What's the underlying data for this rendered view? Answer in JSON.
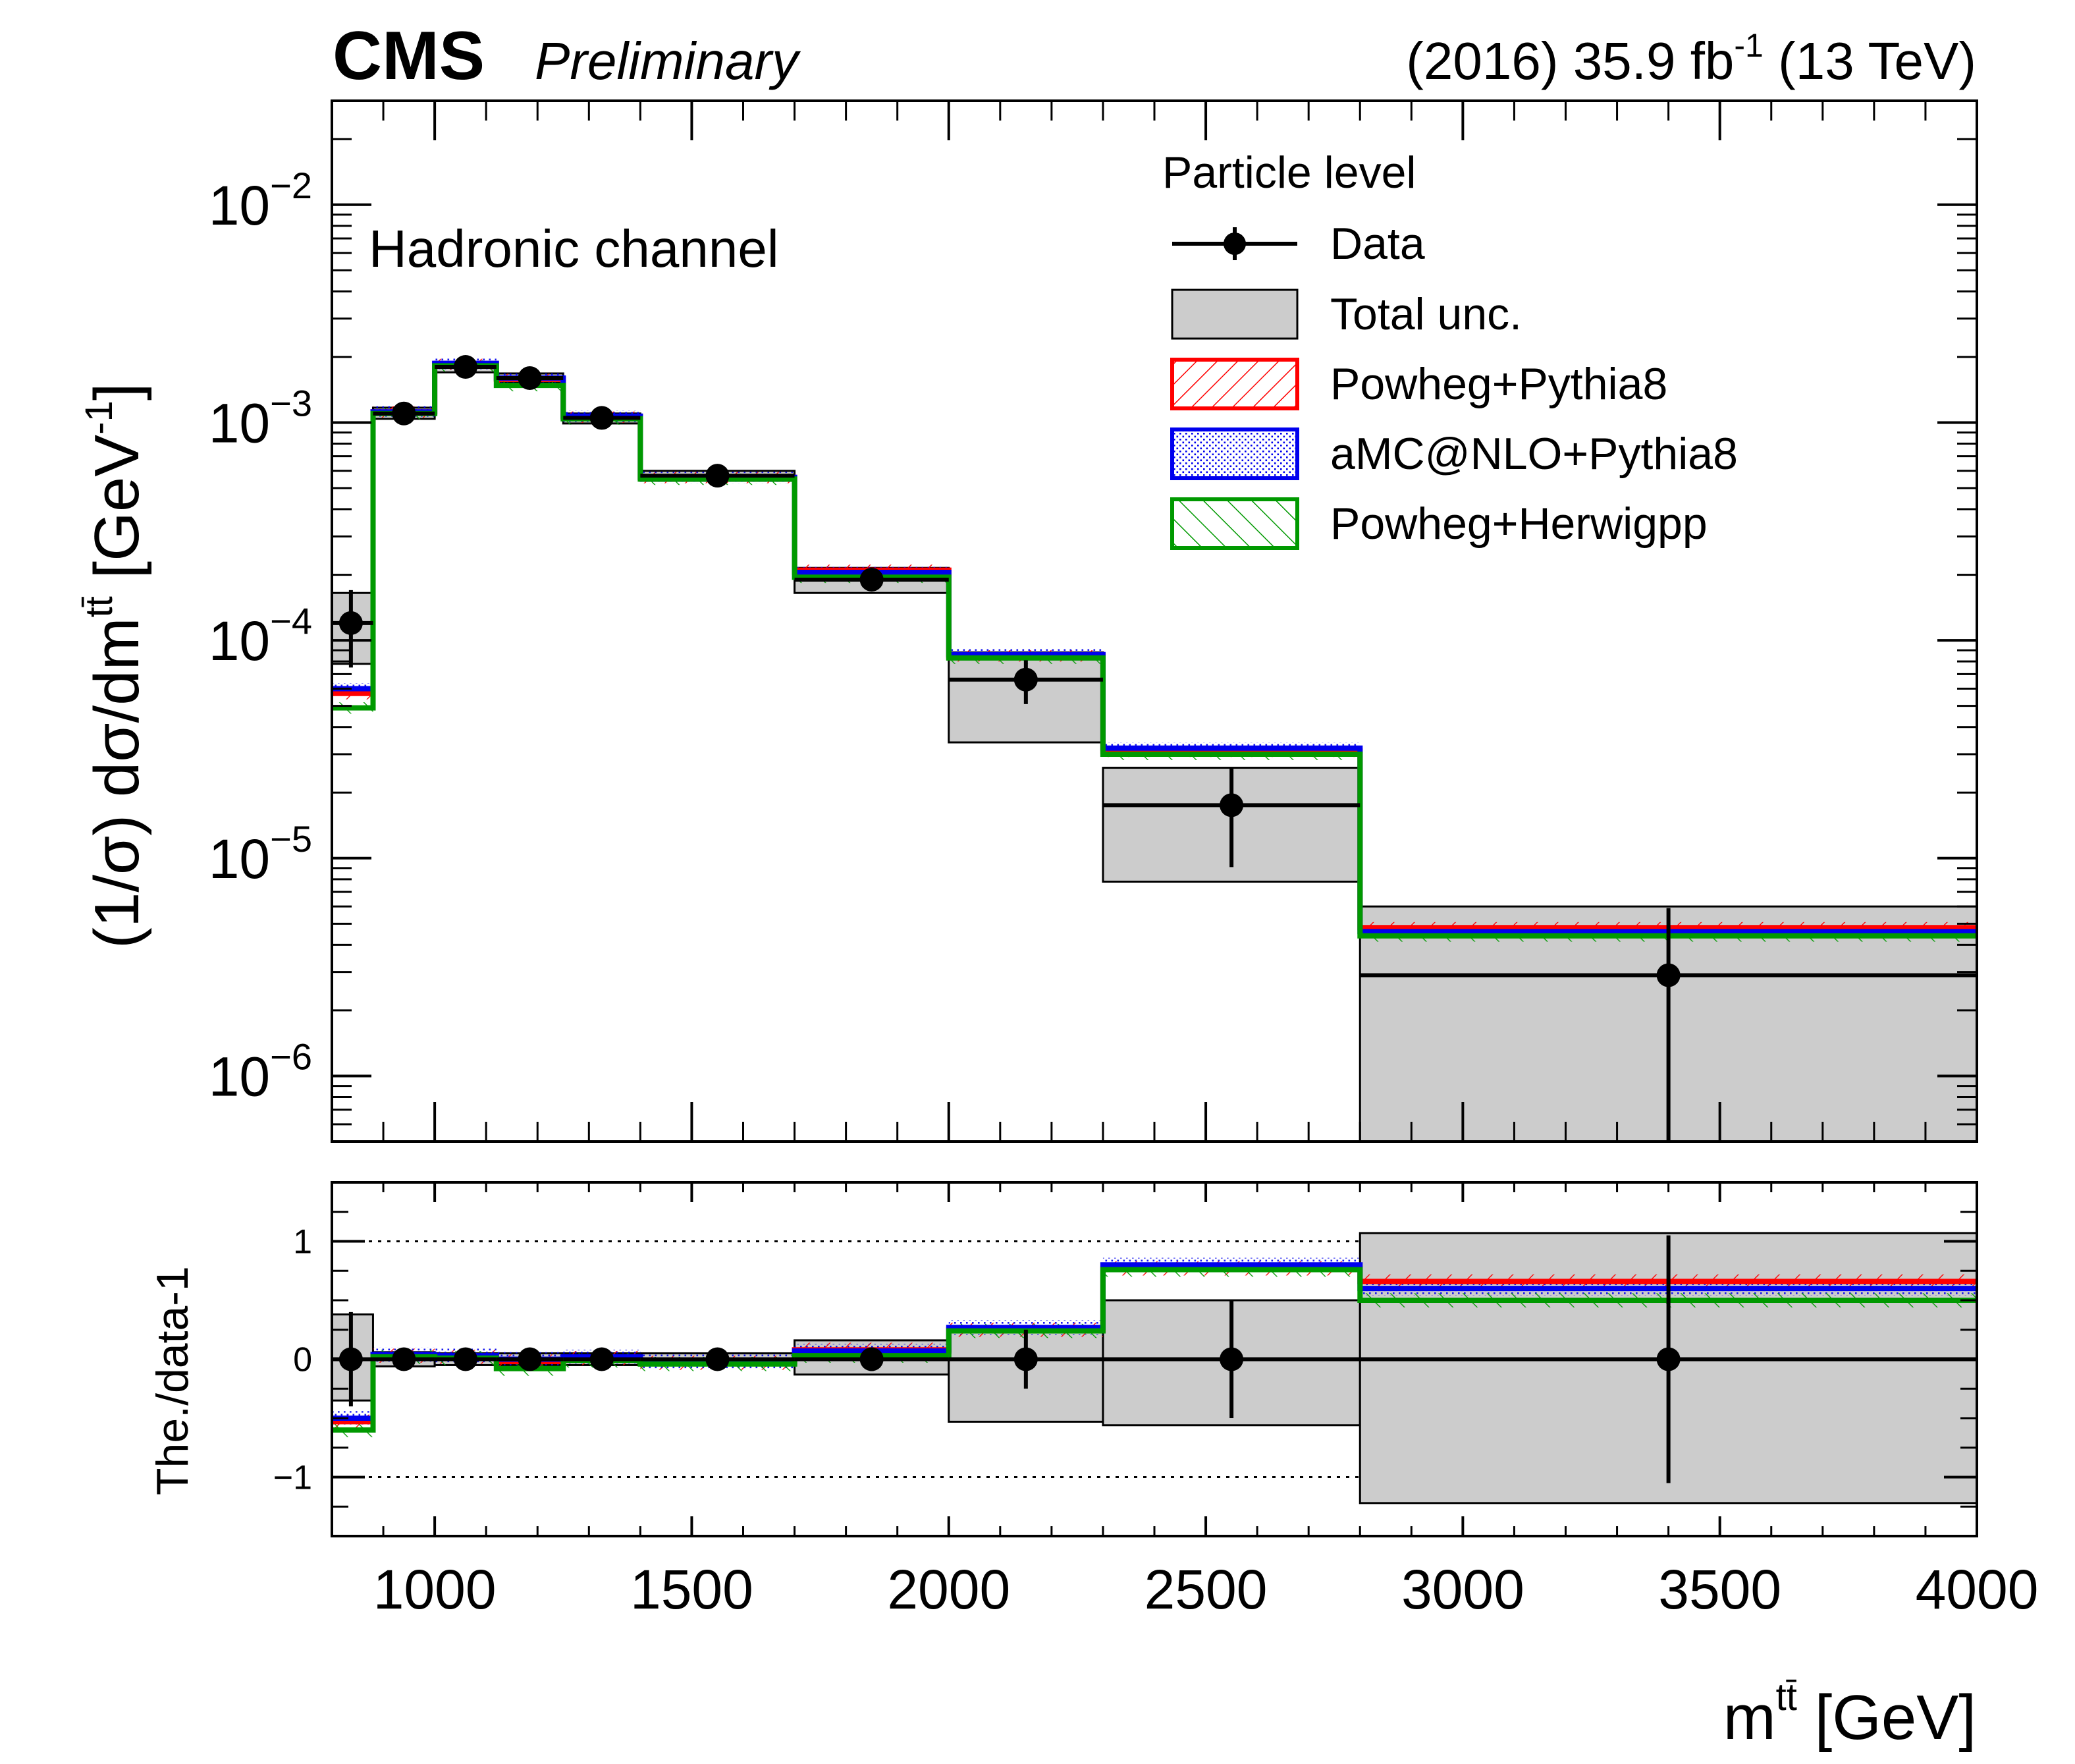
{
  "header": {
    "experiment": "CMS",
    "status": "Preliminary",
    "lumi_main": "(2016) 35.9 fb",
    "lumi_exp": "-1",
    "lumi_energy": " (13 TeV)"
  },
  "colors": {
    "data": "#000000",
    "total_unc": "#cccccc",
    "powheg_pythia8": "#ff0000",
    "amcatnlo_pythia8": "#0000ee",
    "powheg_herwigpp": "#009900"
  },
  "chart_data": {
    "type": "line",
    "channel_label": "Hadronic channel",
    "legend_title": "Particle level",
    "legend": [
      "Data",
      "Total unc.",
      "Powheg+Pythia8",
      "aMC@NLO+Pythia8",
      "Powheg+Herwigpp"
    ],
    "legend_placement": "top-right",
    "xlim": [
      800,
      4000
    ],
    "bin_edges": [
      800,
      880,
      1000,
      1120,
      1250,
      1400,
      1700,
      2000,
      2300,
      2800,
      4000
    ],
    "x_ticks": [
      "1000",
      "1500",
      "2000",
      "2500",
      "3000",
      "3500",
      "4000"
    ],
    "top_panel": {
      "ylabel_parts": [
        "(1/σ) dσ/dm",
        "tt̄",
        " [GeV",
        "-1",
        "]"
      ],
      "yscale": "log",
      "ylim": [
        5e-07,
        0.03
      ],
      "y_ticks": [
        {
          "base": "10",
          "exp": "−2"
        },
        {
          "base": "10",
          "exp": "−3"
        },
        {
          "base": "10",
          "exp": "−4"
        },
        {
          "base": "10",
          "exp": "−5"
        },
        {
          "base": "10",
          "exp": "−6"
        }
      ],
      "data": {
        "x": [
          837,
          940,
          1060,
          1185,
          1325,
          1550,
          1850,
          2150,
          2550,
          3400
        ],
        "y": [
          0.00012,
          0.0011,
          0.0018,
          0.0016,
          0.00105,
          0.00057,
          0.00019,
          6.6e-05,
          1.75e-05,
          2.9e-06
        ],
        "y_err_low": [
          4.5e-05,
          7e-05,
          8e-05,
          8e-05,
          6e-05,
          2.5e-05,
          2e-05,
          1.5e-05,
          8.4e-06,
          2.4e-06
        ],
        "y_err_high": [
          5e-05,
          7e-05,
          8e-05,
          8e-05,
          6e-05,
          2.5e-05,
          2e-05,
          1.5e-05,
          8.5e-06,
          3e-06
        ]
      },
      "total_unc": {
        "low": [
          7.8e-05,
          0.00104,
          0.0017,
          0.00152,
          0.00099,
          0.00054,
          0.000165,
          3.4e-05,
          7.8e-06,
          3e-07
        ],
        "high": [
          0.000165,
          0.00117,
          0.0019,
          0.00168,
          0.0011,
          0.0006,
          0.000215,
          8.8e-05,
          2.6e-05,
          6e-06
        ]
      },
      "series": [
        {
          "name": "Powheg+Pythia8",
          "values": [
            5.7e-05,
            0.00112,
            0.00185,
            0.00158,
            0.00106,
            0.00056,
            0.00021,
            8.5e-05,
            3.1e-05,
            4.8e-06
          ]
        },
        {
          "name": "aMC@NLO+Pythia8",
          "values": [
            6e-05,
            0.00112,
            0.00187,
            0.0016,
            0.00107,
            0.00056,
            0.000205,
            8.6e-05,
            3.2e-05,
            4.6e-06
          ]
        },
        {
          "name": "Powheg+Herwigpp",
          "values": [
            4.9e-05,
            0.0011,
            0.00182,
            0.00148,
            0.00104,
            0.00055,
            0.000195,
            8.3e-05,
            3e-05,
            4.4e-06
          ]
        }
      ]
    },
    "ratio_panel": {
      "ylabel": "The./data-1",
      "ylim": [
        -1.5,
        1.5
      ],
      "y_ticks": [
        "1",
        "0",
        "−1"
      ],
      "reference_lines": [
        1,
        -1
      ],
      "data": {
        "x": [
          837,
          940,
          1060,
          1185,
          1325,
          1550,
          1850,
          2150,
          2550,
          3400
        ],
        "y": [
          0,
          0,
          0,
          0,
          0,
          0,
          0,
          0,
          0,
          0
        ],
        "y_err_low": [
          0.4,
          0.05,
          0.04,
          0.05,
          0.05,
          0.04,
          0.1,
          0.25,
          0.5,
          1.05
        ],
        "y_err_high": [
          0.4,
          0.05,
          0.04,
          0.05,
          0.05,
          0.04,
          0.1,
          0.25,
          0.5,
          1.05
        ]
      },
      "total_unc": {
        "low": [
          -0.35,
          -0.06,
          -0.05,
          -0.05,
          -0.05,
          -0.05,
          -0.13,
          -0.53,
          -0.56,
          -1.22
        ],
        "high": [
          0.38,
          0.06,
          0.05,
          0.05,
          0.05,
          0.05,
          0.16,
          0.25,
          0.5,
          1.07
        ]
      },
      "series": [
        {
          "name": "Powheg+Pythia8",
          "values": [
            -0.53,
            0.03,
            0.02,
            -0.02,
            0.01,
            -0.03,
            0.08,
            0.25,
            0.77,
            0.66
          ]
        },
        {
          "name": "aMC@NLO+Pythia8",
          "values": [
            -0.5,
            0.04,
            0.03,
            0.0,
            0.02,
            -0.02,
            0.07,
            0.27,
            0.8,
            0.6
          ]
        },
        {
          "name": "Powheg+Herwigpp",
          "values": [
            -0.6,
            0.02,
            0.01,
            -0.08,
            -0.01,
            -0.04,
            0.03,
            0.24,
            0.76,
            0.5
          ]
        }
      ]
    },
    "xlabel_parts": [
      "m",
      "tt̄",
      " [GeV]"
    ]
  }
}
